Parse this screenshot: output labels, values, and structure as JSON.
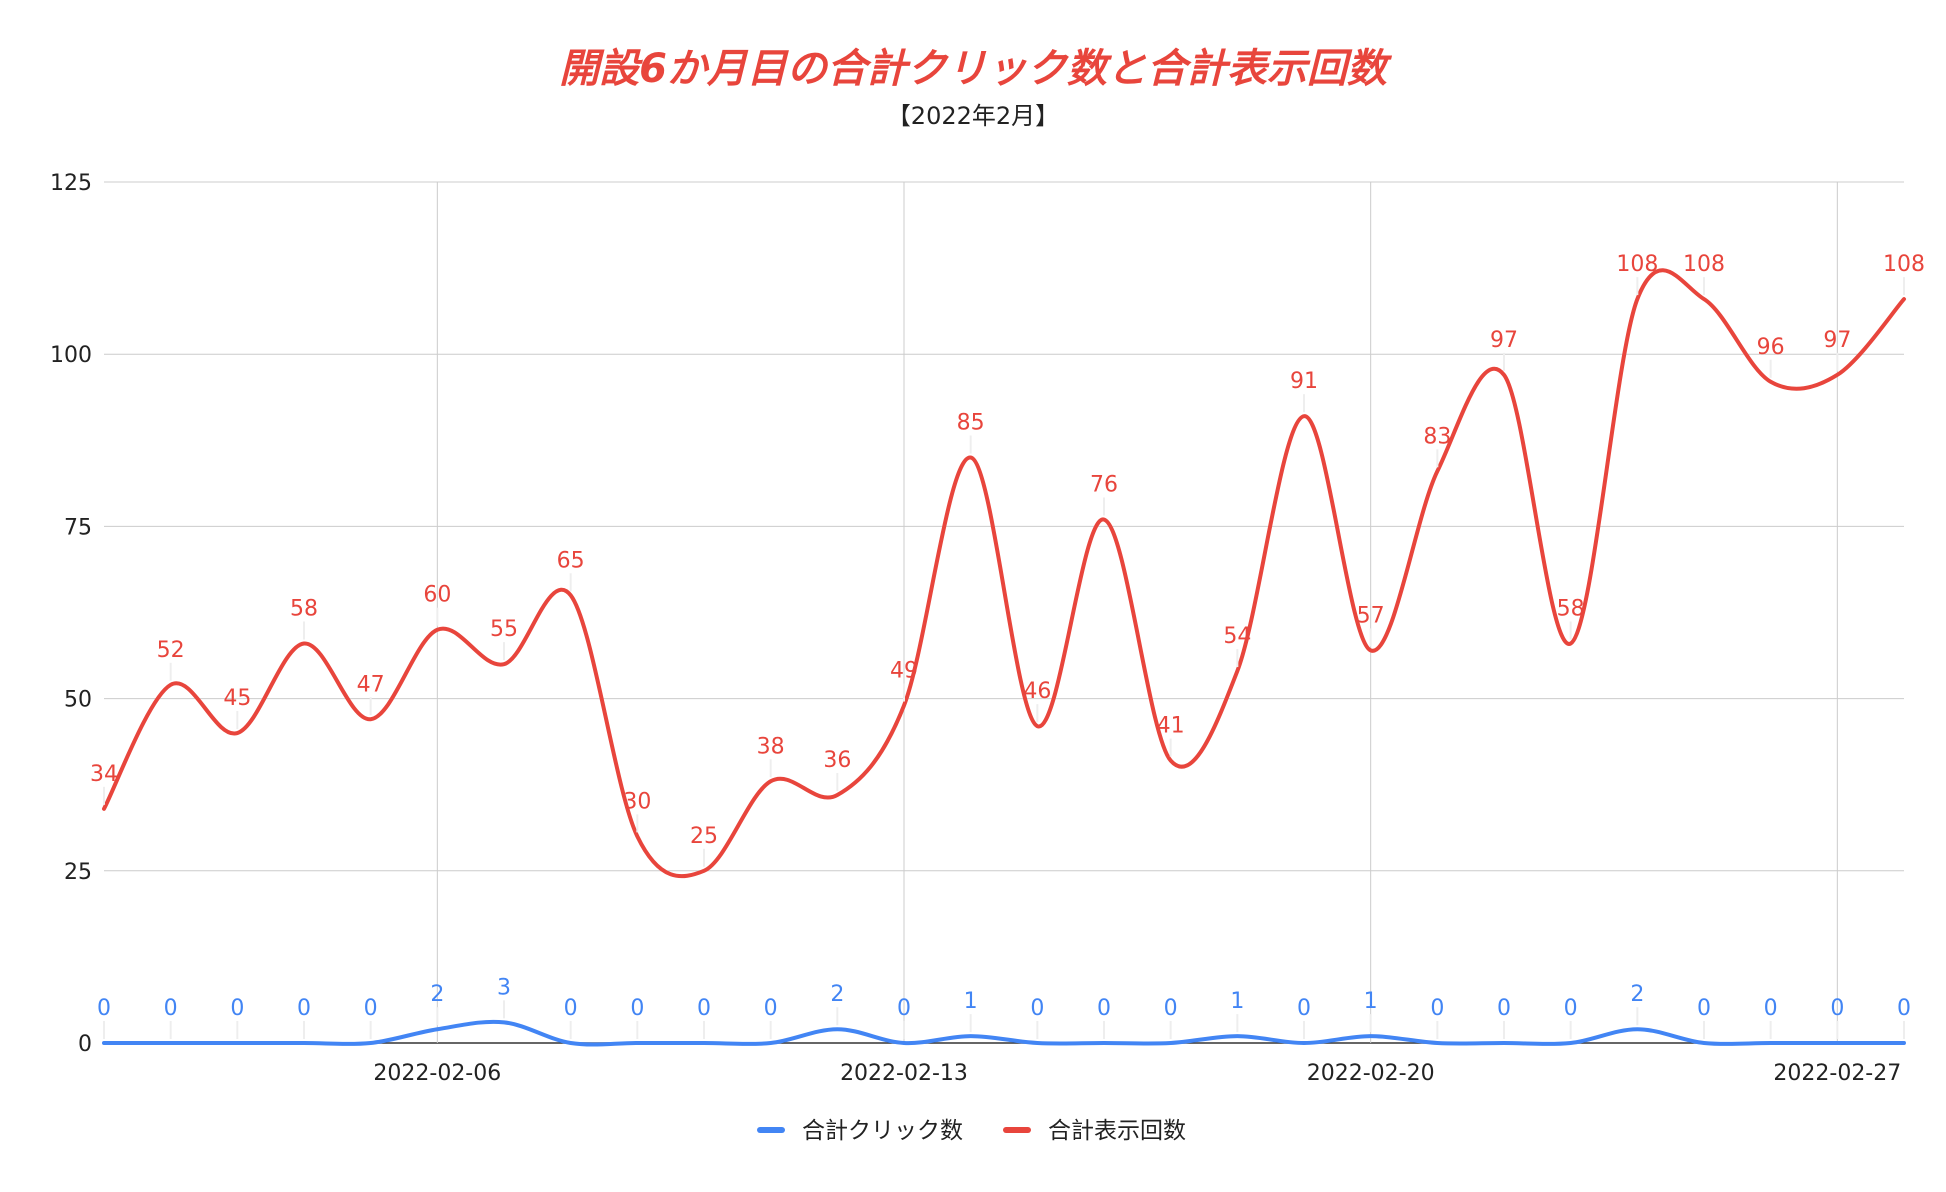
{
  "chart_data": {
    "type": "line",
    "title": "開設6か月目の合計クリック数と合計表示回数",
    "subtitle": "【2022年2月】",
    "x": [
      "2022-02-01",
      "2022-02-02",
      "2022-02-03",
      "2022-02-04",
      "2022-02-05",
      "2022-02-06",
      "2022-02-07",
      "2022-02-08",
      "2022-02-09",
      "2022-02-10",
      "2022-02-11",
      "2022-02-12",
      "2022-02-13",
      "2022-02-14",
      "2022-02-15",
      "2022-02-16",
      "2022-02-17",
      "2022-02-18",
      "2022-02-19",
      "2022-02-20",
      "2022-02-21",
      "2022-02-22",
      "2022-02-23",
      "2022-02-24",
      "2022-02-25",
      "2022-02-26",
      "2022-02-27",
      "2022-02-28"
    ],
    "x_tick_labels": [
      "2022-02-06",
      "2022-02-13",
      "2022-02-20",
      "2022-02-27"
    ],
    "y_ticks": [
      0,
      25,
      50,
      75,
      100,
      125
    ],
    "ylim": [
      0,
      125
    ],
    "grid": true,
    "legend_position": "bottom",
    "series": [
      {
        "name": "合計クリック数",
        "color": "#4285f4",
        "values": [
          0,
          0,
          0,
          0,
          0,
          2,
          3,
          0,
          0,
          0,
          0,
          2,
          0,
          1,
          0,
          0,
          0,
          1,
          0,
          1,
          0,
          0,
          0,
          2,
          0,
          0,
          0,
          0
        ]
      },
      {
        "name": "合計表示回数",
        "color": "#e8453c",
        "values": [
          34,
          52,
          45,
          58,
          47,
          60,
          55,
          65,
          30,
          25,
          38,
          36,
          49,
          85,
          46,
          76,
          41,
          54,
          91,
          57,
          83,
          97,
          58,
          108,
          108,
          96,
          97,
          108
        ]
      }
    ]
  }
}
